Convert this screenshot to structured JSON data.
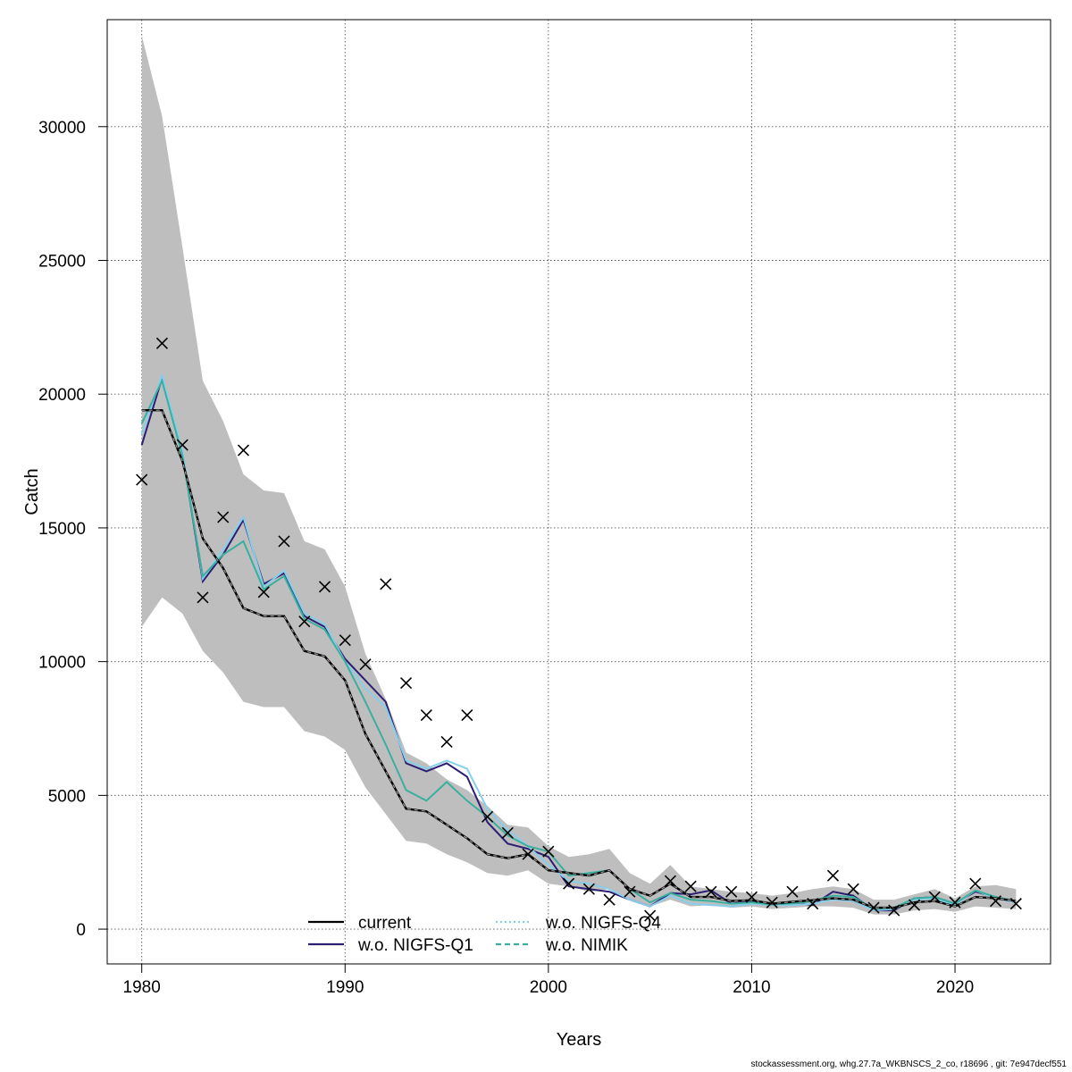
{
  "footer": "stockassessment.org, whg.27.7a_WKBNSCS_2_co, r18696 , git: 7e947decf551",
  "chart_data": {
    "type": "line",
    "title": "",
    "xlabel": "Years",
    "ylabel": "Catch",
    "xlim": [
      1978.3,
      2024.7
    ],
    "ylim": [
      -1300,
      34000
    ],
    "xticks": [
      1980,
      1990,
      2000,
      2010,
      2020
    ],
    "yticks": [
      0,
      5000,
      10000,
      15000,
      20000,
      25000,
      30000
    ],
    "grid": true,
    "legend_position": "bottom-center",
    "x": [
      1980,
      1981,
      1982,
      1983,
      1984,
      1985,
      1986,
      1987,
      1988,
      1989,
      1990,
      1991,
      1992,
      1993,
      1994,
      1995,
      1996,
      1997,
      1998,
      1999,
      2000,
      2001,
      2002,
      2003,
      2004,
      2005,
      2006,
      2007,
      2008,
      2009,
      2010,
      2011,
      2012,
      2013,
      2014,
      2015,
      2016,
      2017,
      2018,
      2019,
      2020,
      2021,
      2022,
      2023
    ],
    "confidence_band": {
      "color": "#bebebe",
      "upper": [
        33400,
        30400,
        25500,
        20500,
        19000,
        17000,
        16400,
        16300,
        14500,
        14200,
        12800,
        10300,
        8600,
        6600,
        6200,
        5600,
        5200,
        4600,
        3900,
        3800,
        3100,
        2700,
        2800,
        3000,
        2100,
        1700,
        2400,
        1600,
        1500,
        1400,
        1350,
        1250,
        1350,
        1500,
        1600,
        1500,
        1100,
        1100,
        1300,
        1500,
        1150,
        1600,
        1650,
        1500
      ],
      "lower": [
        11300,
        12400,
        11800,
        10400,
        9600,
        8500,
        8300,
        8300,
        7400,
        7200,
        6700,
        5300,
        4300,
        3300,
        3200,
        2800,
        2500,
        2100,
        2000,
        2200,
        1700,
        1600,
        1400,
        1500,
        1100,
        850,
        1100,
        850,
        900,
        800,
        850,
        750,
        800,
        850,
        850,
        800,
        550,
        550,
        700,
        750,
        650,
        850,
        800,
        750
      ]
    },
    "series": [
      {
        "name": "current",
        "color": "#000000",
        "values": [
          19400,
          19400,
          17500,
          14600,
          13500,
          12000,
          11700,
          11700,
          10400,
          10200,
          9300,
          7300,
          5900,
          4500,
          4400,
          3900,
          3400,
          2800,
          2650,
          2800,
          2200,
          2100,
          2000,
          2200,
          1500,
          1250,
          1700,
          1200,
          1200,
          1050,
          1080,
          950,
          1020,
          1080,
          1150,
          1100,
          800,
          800,
          1000,
          1050,
          850,
          1200,
          1150,
          1050
        ]
      },
      {
        "name": "w.o. NIGFS-Q1",
        "color": "#2b1e73",
        "values": [
          18100,
          20600,
          17800,
          13000,
          14000,
          15300,
          12900,
          13300,
          11700,
          11300,
          10100,
          9300,
          8500,
          6200,
          5900,
          6200,
          5700,
          4000,
          3200,
          3000,
          2700,
          1600,
          1500,
          1400,
          1100,
          850,
          1350,
          1300,
          1450,
          950,
          1050,
          900,
          1000,
          900,
          1400,
          1250,
          700,
          700,
          1150,
          1200,
          950,
          1400,
          1200,
          1000
        ]
      },
      {
        "name": "w.o. NIGFS-Q4",
        "color": "#87ceeb",
        "values": [
          18500,
          20700,
          17900,
          13100,
          14200,
          15400,
          12800,
          13400,
          11800,
          11400,
          10000,
          9000,
          8300,
          6300,
          6000,
          6300,
          6000,
          4500,
          3700,
          3100,
          2400,
          1800,
          1700,
          1500,
          1100,
          850,
          1250,
          950,
          900,
          850,
          950,
          900,
          900,
          950,
          1100,
          1050,
          700,
          750,
          1100,
          1150,
          900,
          1450,
          1150,
          1000
        ]
      },
      {
        "name": "w.o. NIMIK",
        "color": "#3aaf9e",
        "values": [
          18900,
          20500,
          17700,
          13200,
          14000,
          14500,
          12700,
          13200,
          11600,
          11200,
          10000,
          8500,
          6900,
          5200,
          4800,
          5500,
          4800,
          4200,
          3500,
          3100,
          2900,
          2000,
          2100,
          2200,
          1500,
          1000,
          1350,
          1100,
          1050,
          950,
          1000,
          920,
          960,
          1050,
          1250,
          1200,
          750,
          800,
          1150,
          1200,
          950,
          1450,
          1200,
          1050
        ]
      }
    ],
    "observed": {
      "marker": "x",
      "color": "#000000",
      "values": [
        16800,
        21900,
        18100,
        12400,
        15400,
        17900,
        12600,
        14500,
        11500,
        12800,
        10800,
        9900,
        12900,
        9200,
        8000,
        7000,
        8000,
        4200,
        3600,
        2800,
        2900,
        1700,
        1500,
        1100,
        1400,
        500,
        1800,
        1600,
        1400,
        1400,
        1200,
        1000,
        1400,
        950,
        2000,
        1500,
        800,
        700,
        900,
        1200,
        1000,
        1700,
        1050,
        950
      ]
    }
  }
}
